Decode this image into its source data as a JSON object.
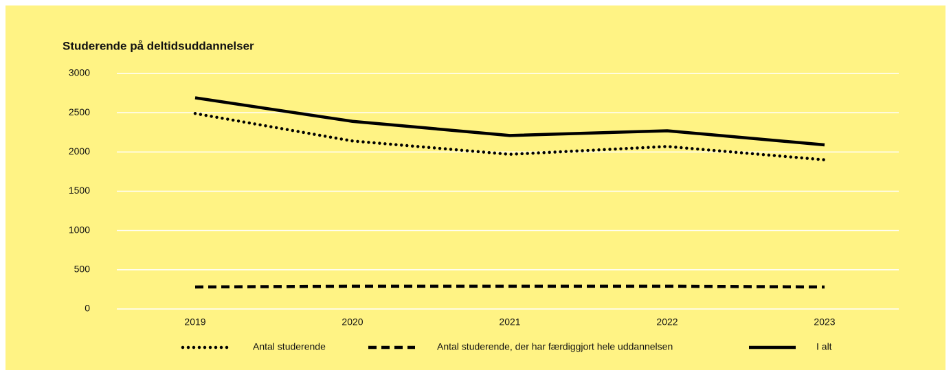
{
  "chart_data": {
    "type": "line",
    "title": "Studerende på deltidsuddannelser",
    "categories": [
      "2019",
      "2020",
      "2021",
      "2022",
      "2023"
    ],
    "series": [
      {
        "name": "Antal studerende",
        "color": "#000000",
        "dash": "dotted",
        "values": [
          2490,
          2140,
          1970,
          2070,
          1900
        ]
      },
      {
        "name": "Antal studerende, der har færdiggjort hele uddannelsen",
        "color": "#000000",
        "dash": "dashed",
        "values": [
          280,
          290,
          290,
          290,
          280
        ]
      },
      {
        "name": "I alt",
        "color": "#000000",
        "dash": "solid",
        "values": [
          2690,
          2390,
          2210,
          2270,
          2090
        ]
      }
    ],
    "ylim": [
      0,
      3000
    ],
    "yticks": [
      0,
      500,
      1000,
      1500,
      2000,
      2500,
      3000
    ],
    "grid": true,
    "legend": "bottom"
  }
}
